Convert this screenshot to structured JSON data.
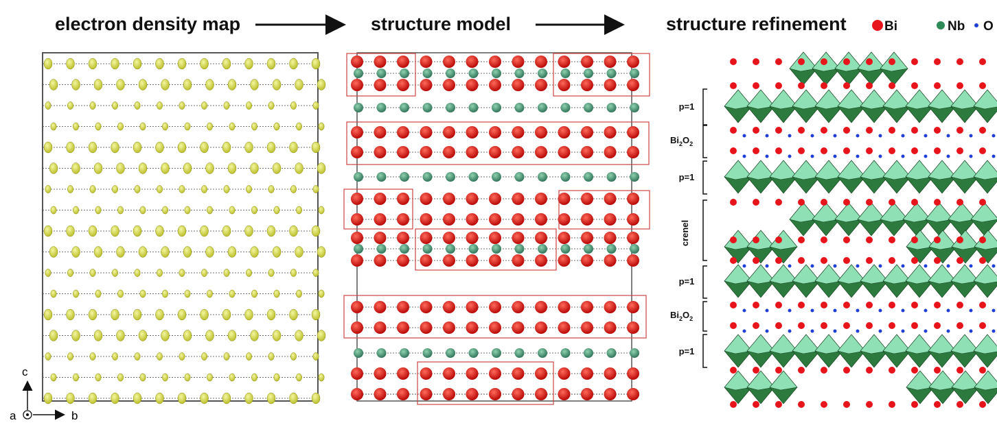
{
  "panels": [
    {
      "title": "electron density map"
    },
    {
      "title": "structure model"
    },
    {
      "title": "structure refinement"
    }
  ],
  "legend": [
    {
      "label": "Bi",
      "color": "#e8141b"
    },
    {
      "label": "Nb",
      "color": "#2e8b57"
    },
    {
      "label": "O",
      "color": "#1f3fd6"
    }
  ],
  "layer_labels": [
    {
      "text": "p=1"
    },
    {
      "parts": [
        "Bi",
        "2",
        "O",
        "2"
      ]
    },
    {
      "text": "p=1"
    },
    {
      "text": "crenel"
    },
    {
      "text": "p=1"
    },
    {
      "parts": [
        "Bi",
        "2",
        "O",
        "2"
      ]
    },
    {
      "text": "p=1"
    }
  ],
  "axes": {
    "vertical": "c",
    "out_of_plane": "a",
    "horizontal": "b"
  }
}
